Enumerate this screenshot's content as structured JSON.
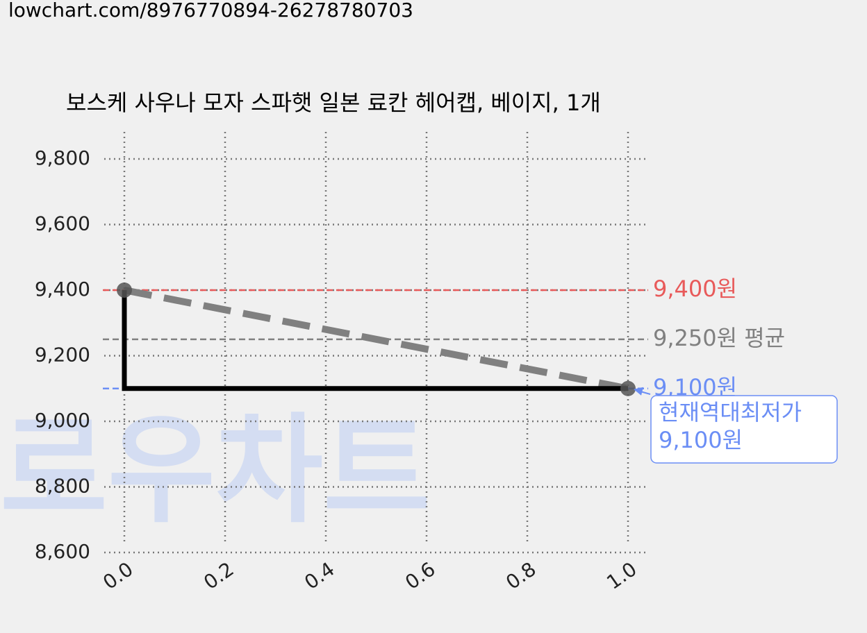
{
  "url": "lowchart.com/8976770894-26278780703",
  "chart_data": {
    "type": "line",
    "title": "보스케 사우나 모자 스파햇 일본 료칸 헤어캡, 베이지, 1개",
    "watermark": "로우차트",
    "x": [
      0,
      0,
      1
    ],
    "values": [
      9400,
      9100,
      9100
    ],
    "color": "#000000",
    "trend": {
      "x": [
        0,
        1
      ],
      "values": [
        9400,
        9100
      ],
      "color": "#808080"
    },
    "reference_lines": [
      {
        "value": 9400,
        "label": "9,400원",
        "color": "#e85a5a"
      },
      {
        "value": 9250,
        "label": "9,250원 평균",
        "color": "#808080"
      },
      {
        "value": 9100,
        "label": "9,100원",
        "color": "#6b8ef5"
      }
    ],
    "annotation": {
      "lines": [
        "현재역대최저가",
        "9,100원"
      ],
      "x": 1,
      "value": 9100,
      "color": "#6b8ef5"
    },
    "xlim": [
      -0.04,
      1.04
    ],
    "ylim": [
      8600,
      9800
    ],
    "xticks": [
      {
        "value": 0,
        "label": "0.0"
      },
      0.2,
      0.4,
      0.6,
      0.8,
      {
        "value": 1,
        "label": "1.0"
      }
    ],
    "yticks": [
      {
        "value": 8600,
        "label": "8,600"
      },
      {
        "value": 8800,
        "label": "8,800"
      },
      {
        "value": 9000,
        "label": "9,000"
      },
      {
        "value": 9200,
        "label": "9,200"
      },
      {
        "value": 9400,
        "label": "9,400"
      },
      {
        "value": 9600,
        "label": "9,600"
      },
      {
        "value": 9800,
        "label": "9,800"
      }
    ],
    "grid": true
  }
}
